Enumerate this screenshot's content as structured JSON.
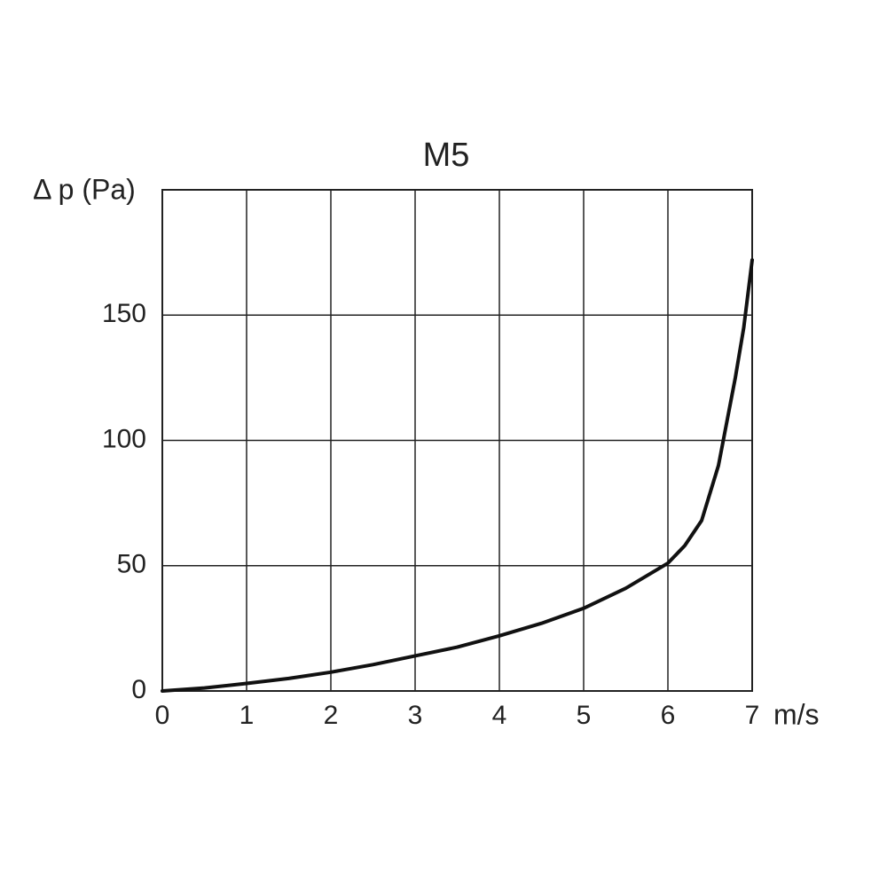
{
  "chart_data": {
    "type": "line",
    "title": "M5",
    "y_label": "Δ p (Pa)",
    "x_label": "m/s",
    "x": [
      0,
      0.5,
      1,
      1.5,
      2,
      2.5,
      3,
      3.5,
      4,
      4.5,
      5,
      5.5,
      6,
      6.2,
      6.4,
      6.6,
      6.8,
      6.9,
      7
    ],
    "series": [
      {
        "name": "M5",
        "color": "#111111",
        "values": [
          0,
          1.2,
          3,
          5,
          7.5,
          10.5,
          14,
          17.5,
          22,
          27,
          33,
          41,
          51,
          58,
          68,
          90,
          125,
          145,
          172
        ]
      }
    ],
    "xlim": [
      0,
      7
    ],
    "xticks": [
      0,
      1,
      2,
      3,
      4,
      5,
      6,
      7
    ],
    "ylim": [
      0,
      200
    ],
    "yticks": [
      0,
      50,
      100,
      150
    ],
    "grid": true
  }
}
